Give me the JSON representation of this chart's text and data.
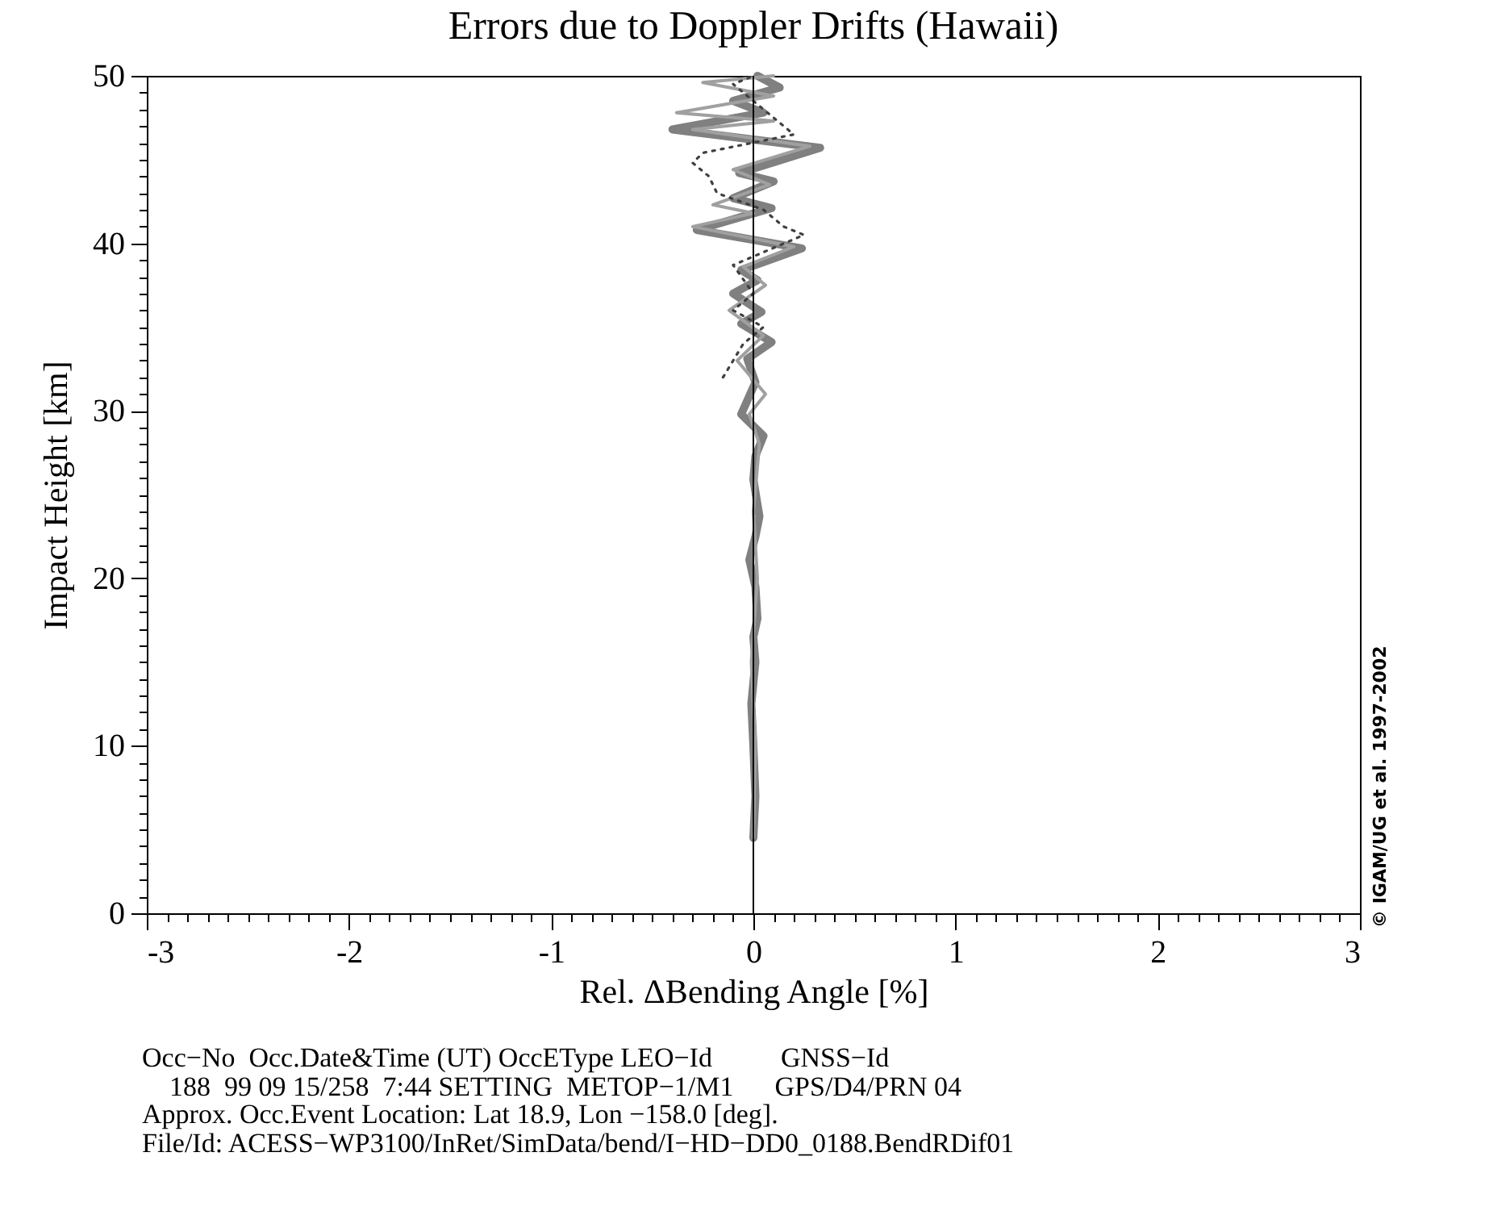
{
  "chart_data": {
    "type": "line",
    "title": "Errors due to Doppler Drifts (Hawaii)",
    "xlabel": "Rel. ΔBending Angle [%]",
    "ylabel": "Impact Height [km]",
    "xlim": [
      -3,
      3
    ],
    "ylim": [
      0,
      50
    ],
    "xticks": [
      -3,
      {
        "value": -2.9,
        "label": null
      },
      {
        "value": -2.8,
        "label": null
      },
      {
        "value": -2.7,
        "label": null
      },
      {
        "value": -2.6,
        "label": null
      },
      {
        "value": -2.5,
        "label": null
      },
      {
        "value": -2.4,
        "label": null
      },
      {
        "value": -2.3,
        "label": null
      },
      {
        "value": -2.2,
        "label": null
      },
      {
        "value": -2.1,
        "label": null
      },
      -2,
      {
        "value": -1.9,
        "label": null
      },
      {
        "value": -1.8,
        "label": null
      },
      {
        "value": -1.7,
        "label": null
      },
      {
        "value": -1.6,
        "label": null
      },
      {
        "value": -1.5,
        "label": null
      },
      {
        "value": -1.4,
        "label": null
      },
      {
        "value": -1.3,
        "label": null
      },
      {
        "value": -1.2,
        "label": null
      },
      {
        "value": -1.1,
        "label": null
      },
      -1,
      {
        "value": -0.9,
        "label": null
      },
      {
        "value": -0.8,
        "label": null
      },
      {
        "value": -0.7,
        "label": null
      },
      {
        "value": -0.6,
        "label": null
      },
      {
        "value": -0.5,
        "label": null
      },
      {
        "value": -0.4,
        "label": null
      },
      {
        "value": -0.3,
        "label": null
      },
      {
        "value": -0.2,
        "label": null
      },
      {
        "value": -0.1,
        "label": null
      },
      0,
      {
        "value": 0.1,
        "label": null
      },
      {
        "value": 0.2,
        "label": null
      },
      {
        "value": 0.3,
        "label": null
      },
      {
        "value": 0.4,
        "label": null
      },
      {
        "value": 0.5,
        "label": null
      },
      {
        "value": 0.6,
        "label": null
      },
      {
        "value": 0.7,
        "label": null
      },
      {
        "value": 0.8,
        "label": null
      },
      {
        "value": 0.9,
        "label": null
      },
      1,
      {
        "value": 1.1,
        "label": null
      },
      {
        "value": 1.2,
        "label": null
      },
      {
        "value": 1.3,
        "label": null
      },
      {
        "value": 1.4,
        "label": null
      },
      {
        "value": 1.5,
        "label": null
      },
      {
        "value": 1.6,
        "label": null
      },
      {
        "value": 1.7,
        "label": null
      },
      {
        "value": 1.8,
        "label": null
      },
      {
        "value": 1.9,
        "label": null
      },
      2,
      {
        "value": 2.1,
        "label": null
      },
      {
        "value": 2.2,
        "label": null
      },
      {
        "value": 2.3,
        "label": null
      },
      {
        "value": 2.4,
        "label": null
      },
      {
        "value": 2.5,
        "label": null
      },
      {
        "value": 2.6,
        "label": null
      },
      {
        "value": 2.7,
        "label": null
      },
      {
        "value": 2.8,
        "label": null
      },
      {
        "value": 2.9,
        "label": null
      },
      3
    ],
    "yticks": [
      0,
      {
        "value": 1,
        "label": null
      },
      {
        "value": 2,
        "label": null
      },
      {
        "value": 3,
        "label": null
      },
      {
        "value": 4,
        "label": null
      },
      {
        "value": 5,
        "label": null
      },
      {
        "value": 6,
        "label": null
      },
      {
        "value": 7,
        "label": null
      },
      {
        "value": 8,
        "label": null
      },
      {
        "value": 9,
        "label": null
      },
      10,
      {
        "value": 11,
        "label": null
      },
      {
        "value": 12,
        "label": null
      },
      {
        "value": 13,
        "label": null
      },
      {
        "value": 14,
        "label": null
      },
      {
        "value": 15,
        "label": null
      },
      {
        "value": 16,
        "label": null
      },
      {
        "value": 17,
        "label": null
      },
      {
        "value": 18,
        "label": null
      },
      {
        "value": 19,
        "label": null
      },
      20,
      {
        "value": 21,
        "label": null
      },
      {
        "value": 22,
        "label": null
      },
      {
        "value": 23,
        "label": null
      },
      {
        "value": 24,
        "label": null
      },
      {
        "value": 25,
        "label": null
      },
      {
        "value": 26,
        "label": null
      },
      {
        "value": 27,
        "label": null
      },
      {
        "value": 28,
        "label": null
      },
      {
        "value": 29,
        "label": null
      },
      30,
      {
        "value": 31,
        "label": null
      },
      {
        "value": 32,
        "label": null
      },
      {
        "value": 33,
        "label": null
      },
      {
        "value": 34,
        "label": null
      },
      {
        "value": 35,
        "label": null
      },
      {
        "value": 36,
        "label": null
      },
      {
        "value": 37,
        "label": null
      },
      {
        "value": 38,
        "label": null
      },
      {
        "value": 39,
        "label": null
      },
      40,
      {
        "value": 41,
        "label": null
      },
      {
        "value": 42,
        "label": null
      },
      {
        "value": 43,
        "label": null
      },
      {
        "value": 44,
        "label": null
      },
      {
        "value": 45,
        "label": null
      },
      {
        "value": 46,
        "label": null
      },
      {
        "value": 47,
        "label": null
      },
      {
        "value": 48,
        "label": null
      },
      {
        "value": 49,
        "label": null
      },
      50
    ],
    "grid": false,
    "series": [
      {
        "color": "#808080",
        "line_style": "solid",
        "x": [
          0.0,
          0.01,
          0.0,
          -0.01,
          0.01,
          0.0,
          0.02,
          0.01,
          -0.02,
          0.01,
          0.03,
          0.0,
          0.01,
          0.05,
          -0.06,
          0.01,
          -0.03,
          0.09,
          -0.06,
          0.04,
          -0.1,
          0.02,
          -0.06,
          0.24,
          -0.28,
          0.09,
          -0.1,
          0.1,
          -0.07,
          0.33,
          -0.4,
          0.05,
          -0.1,
          0.13,
          0.02
        ],
        "values": [
          4.5,
          7,
          10,
          12.5,
          15,
          16.5,
          17.6,
          19.5,
          21.1,
          22.5,
          23.7,
          25.9,
          27.3,
          28.5,
          29.8,
          31.7,
          33.1,
          34.1,
          35.2,
          35.9,
          37,
          37.8,
          38.4,
          39.7,
          40.8,
          42.1,
          42.7,
          43.7,
          44.2,
          45.7,
          46.8,
          47.8,
          48.5,
          49.3,
          50
        ]
      },
      {
        "color": "#a0a0a0",
        "line_style": "solid",
        "x": [
          0.0,
          0.01,
          -0.01,
          0.02,
          0.0,
          0.03,
          -0.02,
          0.06,
          -0.08,
          0.05,
          -0.12,
          0.06,
          -0.05,
          0.2,
          -0.3,
          0.0,
          -0.2,
          0.08,
          -0.1,
          0.28,
          -0.3,
          0.1,
          -0.38,
          0.1,
          -0.25,
          0.1
        ],
        "values": [
          4.5,
          10,
          15,
          20,
          24,
          28,
          29.8,
          31,
          33,
          34.5,
          36,
          37.5,
          38.6,
          39.8,
          41,
          41.8,
          42.3,
          43.5,
          44.4,
          45.8,
          46.8,
          47.3,
          47.8,
          48.8,
          49.6,
          50
        ]
      },
      {
        "color": "#404040",
        "line_style": "dotted",
        "x": [
          -0.15,
          -0.05,
          0.05,
          -0.1,
          0.0,
          -0.1,
          0.25,
          0.15,
          0.05,
          -0.18,
          -0.22,
          -0.3,
          -0.25,
          0.2,
          0.05,
          -0.1,
          0.0
        ],
        "values": [
          32,
          34,
          35,
          36,
          37,
          38.7,
          40.5,
          41,
          42,
          43,
          44,
          44.8,
          45.4,
          46.5,
          48,
          49.5,
          50
        ]
      }
    ],
    "ref_lines": [
      {
        "axis": "x",
        "value": 0,
        "color": "#000000"
      }
    ],
    "annotations": [
      "© IGAM/UG et al. 1997-2002",
      "Occ−No  Occ.Date&Time (UT) OccEType LEO−Id          GNSS−Id",
      "    188  99 09 15/258  7:44 SETTING  METOP−1/M1      GPS/D4/PRN 04",
      "Approx. Occ.Event Location: Lat 18.9, Lon −158.0 [deg].",
      "File/Id: ACESS−WP3100/InRet/SimData/bend/I−HD−DD0_0188.BendRDif01"
    ]
  }
}
